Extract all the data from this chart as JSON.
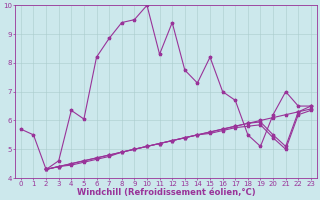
{
  "background_color": "#cce8ec",
  "grid_color": "#aacccc",
  "line_color": "#993399",
  "xlabel": "Windchill (Refroidissement éolien,°C)",
  "xlim": [
    -0.5,
    23.5
  ],
  "ylim": [
    4,
    10
  ],
  "yticks": [
    4,
    5,
    6,
    7,
    8,
    9,
    10
  ],
  "xticks": [
    0,
    1,
    2,
    3,
    4,
    5,
    6,
    7,
    8,
    9,
    10,
    11,
    12,
    13,
    14,
    15,
    16,
    17,
    18,
    19,
    20,
    21,
    22,
    23
  ],
  "series_main": [
    5.7,
    5.5,
    4.3,
    4.6,
    6.35,
    6.05,
    8.2,
    8.85,
    9.4,
    9.5,
    10.0,
    8.3,
    9.4,
    7.75,
    7.3,
    8.2,
    7.0,
    6.7,
    5.5,
    5.1,
    6.2,
    7.0,
    6.5,
    6.5
  ],
  "series_flat": [
    [
      4.3,
      4.4,
      4.5,
      4.6,
      4.7,
      4.8,
      4.9,
      5.0,
      5.1,
      5.2,
      5.3,
      5.4,
      5.5,
      5.6,
      5.7,
      5.8,
      5.9,
      6.0,
      6.1,
      6.2,
      6.3,
      6.5
    ],
    [
      4.3,
      4.4,
      4.5,
      4.6,
      4.7,
      4.8,
      4.9,
      5.0,
      5.1,
      5.2,
      5.3,
      5.4,
      5.5,
      5.6,
      5.7,
      5.8,
      5.9,
      5.95,
      5.5,
      5.1,
      6.3,
      6.4
    ],
    [
      4.3,
      4.4,
      4.45,
      4.55,
      4.65,
      4.75,
      4.9,
      5.0,
      5.1,
      5.2,
      5.3,
      5.4,
      5.5,
      5.55,
      5.65,
      5.75,
      5.8,
      5.85,
      5.4,
      5.0,
      6.2,
      6.35
    ]
  ],
  "flat_start_x": 2,
  "marker": "*",
  "markersize": 2.5,
  "linewidth": 0.8,
  "xlabel_color": "#993399",
  "xlabel_fontsize": 6,
  "tick_fontsize": 5,
  "tick_color": "#993399",
  "axis_color": "#993399"
}
